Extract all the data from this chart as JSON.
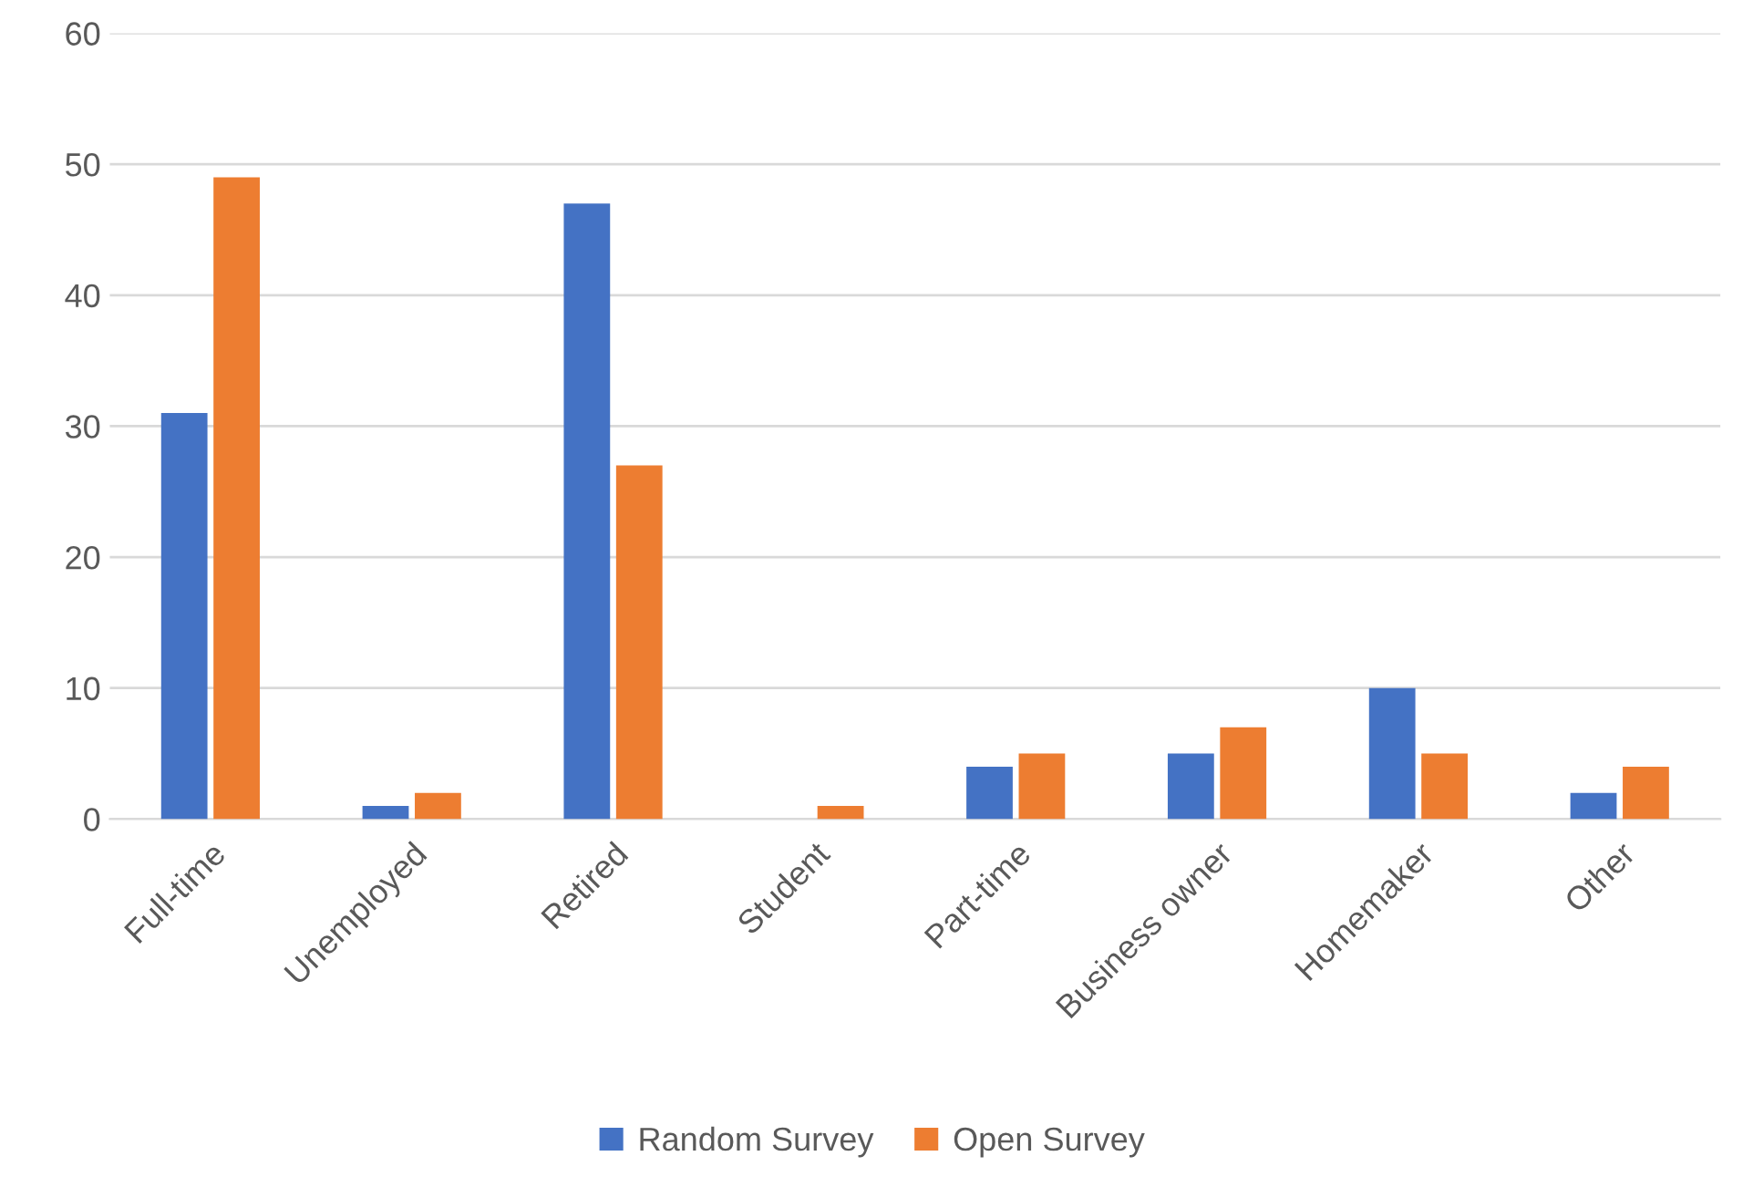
{
  "chart_data": {
    "type": "bar",
    "categories": [
      "Full-time",
      "Unemployed",
      "Retired",
      "Student",
      "Part-time",
      "Business owner",
      "Homemaker",
      "Other"
    ],
    "series": [
      {
        "name": "Random Survey",
        "color": "#4472c4",
        "values": [
          31,
          1,
          47,
          0,
          4,
          5,
          10,
          2
        ]
      },
      {
        "name": "Open Survey",
        "color": "#ed7d31",
        "values": [
          49,
          2,
          27,
          1,
          5,
          7,
          5,
          4
        ]
      }
    ],
    "ylim": [
      0,
      60
    ],
    "yticks": [
      0,
      10,
      20,
      30,
      40,
      50,
      60
    ],
    "grid": "y",
    "legend": "bottom"
  }
}
